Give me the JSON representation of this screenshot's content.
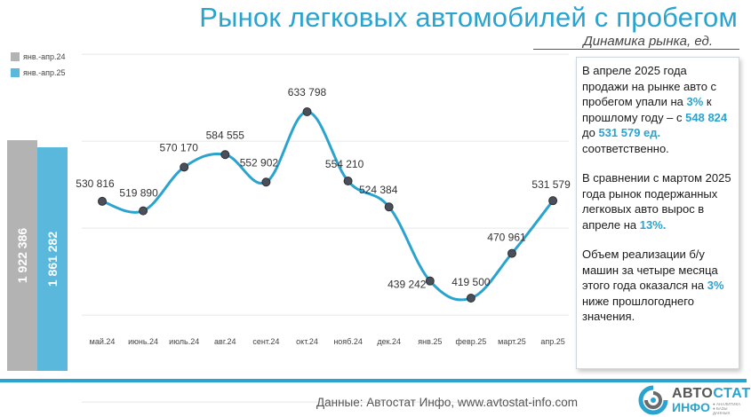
{
  "header": {
    "title": "Рынок легковых автомобилей с пробегом",
    "subtitle": "Динамика рынка, ед."
  },
  "colors": {
    "accent": "#2aa3cf",
    "bar_2024": "#b3b3b3",
    "bar_2025": "#5ab8dc",
    "line": "#2aa3cf",
    "marker": "#4a4f5a"
  },
  "totals": {
    "legend": [
      "янв.-апр.24",
      "янв.-апр.25"
    ],
    "values": [
      1922386,
      1861282
    ],
    "labels": [
      "1 922 386",
      "1 861 282"
    ]
  },
  "chart_data": {
    "type": "line",
    "categories": [
      "май.24",
      "июнь.24",
      "июль.24",
      "авг.24",
      "сент.24",
      "окт.24",
      "нояб.24",
      "дек.24",
      "янв.25",
      "февр.25",
      "март.25",
      "апр.25"
    ],
    "values": [
      530816,
      519890,
      570170,
      584555,
      552902,
      633798,
      554210,
      524384,
      439242,
      419500,
      470961,
      531579
    ],
    "data_labels": [
      "530 816",
      "519 890",
      "570 170",
      "584 555",
      "552 902",
      "633 798",
      "554 210",
      "524 384",
      "439 242",
      "419 500",
      "470 961",
      "531 579"
    ],
    "ylim": [
      0,
      700000
    ],
    "grid": true
  },
  "commentary": {
    "p1": {
      "t1": "В апреле 2025 года продажи на рынке авто с пробегом упали на ",
      "h1": "3%",
      "t2": " к прошлому году – с ",
      "h2": "548 824",
      "t3": " до ",
      "h3": "531 579 ед.",
      "t4": " соответственно."
    },
    "p2": {
      "t1": "В сравнении с мартом 2025 года рынок подержанных легковых авто вырос в апреле на ",
      "h1": "13%."
    },
    "p3": {
      "t1": "Объем реализации б/у машин за четыре месяца этого года оказался на ",
      "h1": "3%",
      "t2": " ниже прошлогоднего значения."
    }
  },
  "footer": {
    "source": "Данные: Автостат Инфо, www.avtostat-info.com"
  },
  "logo": {
    "line1a": "АВТО",
    "line1b": "СТАТ",
    "line2": "ИНФО",
    "tagline": "● АНАЛИТИКА ● БАЗЫ ДАННЫХ"
  }
}
